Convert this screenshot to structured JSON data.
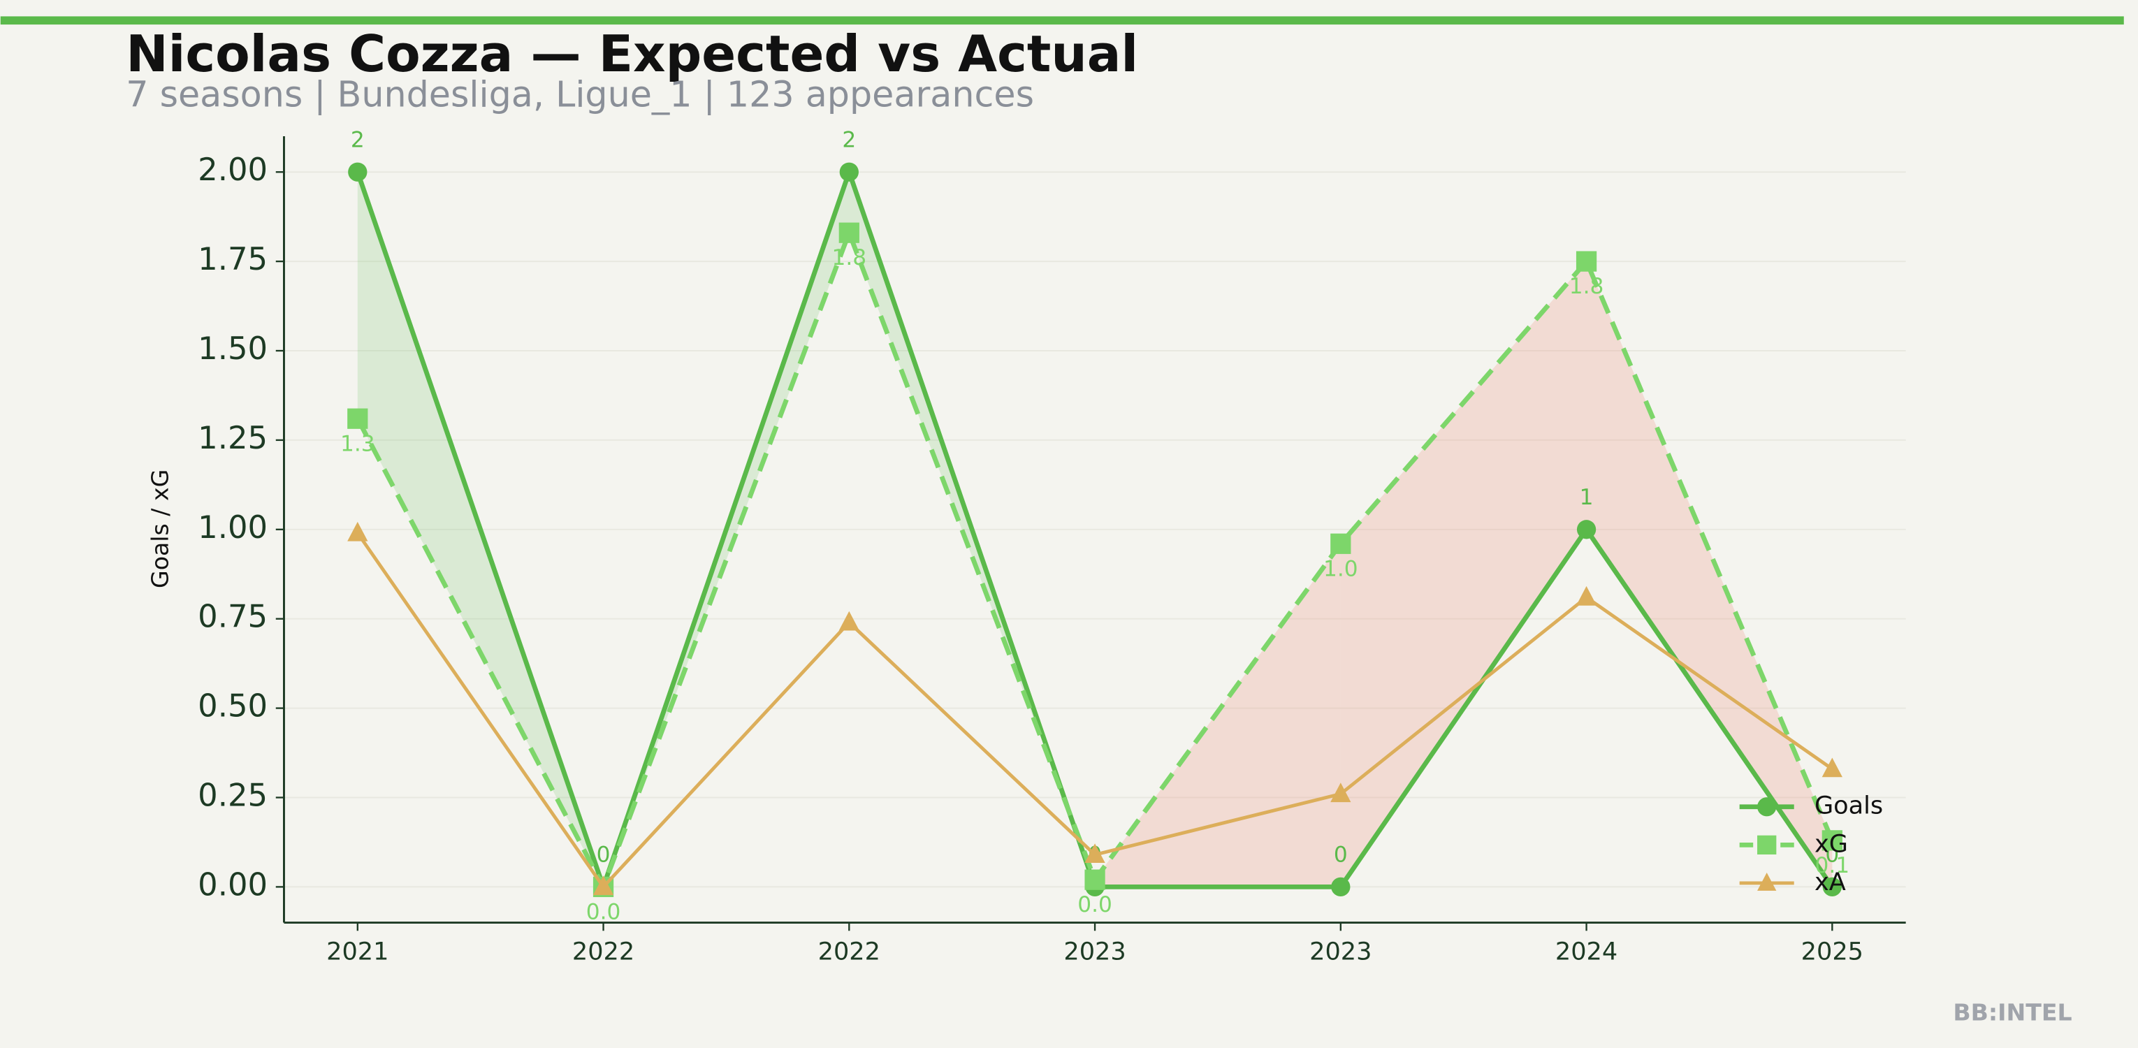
{
  "chart_data": {
    "type": "line",
    "title": "Nicolas Cozza — Expected vs Actual",
    "subtitle": "7 seasons | Bundesliga, Ligue_1 | 123 appearances",
    "y_label": "Goals / xG",
    "watermark": "BB:INTEL",
    "categories": [
      "2021",
      "2022",
      "2022",
      "2023",
      "2023",
      "2024",
      "2025"
    ],
    "series": [
      {
        "name": "Goals",
        "color": "#5ab94a",
        "marker": "circle",
        "dash": false,
        "values": [
          2,
          0,
          2,
          0,
          0,
          1,
          0
        ]
      },
      {
        "name": "xG",
        "color": "#7dd66a",
        "marker": "square",
        "dash": true,
        "values": [
          1.31,
          0.0,
          1.83,
          0.02,
          0.96,
          1.75,
          0.13
        ],
        "value_labels": [
          "1.3",
          "0.0",
          "1.8",
          "0.0",
          "1.0",
          "1.8",
          "0.1"
        ]
      },
      {
        "name": "xA",
        "color": "#dcae5a",
        "marker": "triangle",
        "dash": false,
        "values": [
          0.99,
          0.0,
          0.74,
          0.09,
          0.26,
          0.81,
          0.33
        ]
      }
    ],
    "ylim": [
      -0.1,
      2.1
    ],
    "yticks": [
      {
        "value": 0,
        "label": "0.00"
      },
      {
        "value": 0.25,
        "label": "0.25"
      },
      {
        "value": 0.5,
        "label": "0.50"
      },
      {
        "value": 0.75,
        "label": "0.75"
      },
      {
        "value": 1,
        "label": "1.00"
      },
      {
        "value": 1.25,
        "label": "1.25"
      },
      {
        "value": 1.5,
        "label": "1.50"
      },
      {
        "value": 1.75,
        "label": "1.75"
      },
      {
        "value": 2,
        "label": "2.00"
      }
    ],
    "grid": true,
    "legend": "lower right"
  }
}
